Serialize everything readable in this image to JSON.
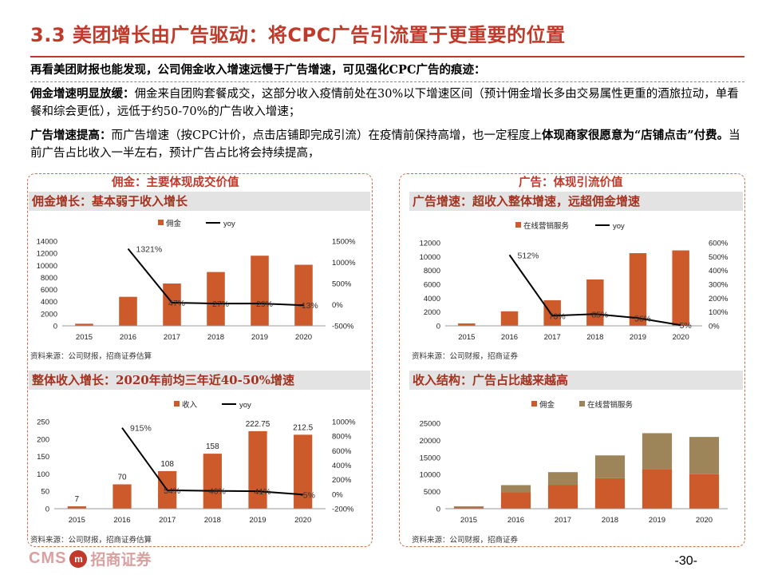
{
  "header": {
    "title": "3.3 美团增长由广告驱动：将CPC广告引流置于更重要的位置"
  },
  "paragraphs": {
    "p1": "再看美团财报也能发现，公司佣金收入增速远慢于广告增速，可见强化CPC广告的痕迹：",
    "p2_lead": "佣金增速明显放缓：",
    "p2_body": "佣金来自团购套餐成交，这部分收入疫情前处在30%以下增速区间（预计佣金增长多由交易属性更重的酒旅拉动，单看餐和综会更低），远低于约50-70%的广告收入增速；",
    "p3_lead": "广告增速提高：",
    "p3_body": "而广告增速（按CPC计价，点击店铺即完成引流）在疫情前保持高增，也一定程度上",
    "p3_bold": "体现商家很愿意为“店铺点击”付费。",
    "p3_tail": "当前广告占比收入一半左右，预计广告占比将会持续提高，"
  },
  "left_box": {
    "header": "佣金：主要体现成交价值"
  },
  "right_box": {
    "header": "广告：体现引流价值"
  },
  "footer": {
    "cms": "CMS",
    "logo_glyph": "m",
    "logo_cn": "招商证券",
    "page": "-30-"
  },
  "chart_data": [
    {
      "id": "commission",
      "type": "bar",
      "title": "佣金增长：基本弱于收入增长",
      "categories": [
        "2015",
        "2016",
        "2017",
        "2018",
        "2019",
        "2020"
      ],
      "series": [
        {
          "name": "佣金",
          "kind": "bar",
          "axis": "left",
          "values": [
            350,
            4800,
            7000,
            8900,
            11600,
            10100
          ]
        },
        {
          "name": "yoy",
          "kind": "line",
          "axis": "right",
          "values": [
            null,
            1321,
            47,
            27,
            29,
            -13
          ]
        }
      ],
      "point_labels": [
        "",
        "1321%",
        "47%",
        "27%",
        "29%",
        "-13%"
      ],
      "legend": [
        "佣金",
        "yoy"
      ],
      "left_axis": {
        "min": 0,
        "max": 14000,
        "ticks": [
          "0",
          "2000",
          "4000",
          "6000",
          "8000",
          "10000",
          "12000",
          "14000"
        ]
      },
      "right_axis": {
        "min": -500,
        "max": 1500,
        "ticks": [
          "-500%",
          "0%",
          "500%",
          "1000%",
          "1500%"
        ]
      },
      "source": "资料来源：公司财报，招商证券估算",
      "colors": {
        "bar": "#cc5a2b",
        "line": "#000000"
      }
    },
    {
      "id": "ads",
      "type": "bar",
      "title": "广告增速：超收入整体增速，远超佣金增速",
      "categories": [
        "2015",
        "2016",
        "2017",
        "2018",
        "2019",
        "2020"
      ],
      "series": [
        {
          "name": "在线营销服务",
          "kind": "bar",
          "axis": "left",
          "values": [
            350,
            2100,
            3700,
            6700,
            10500,
            10900
          ]
        },
        {
          "name": "yoy",
          "kind": "line",
          "axis": "right",
          "values": [
            null,
            512,
            73,
            85,
            56,
            5
          ]
        }
      ],
      "point_labels": [
        "",
        "512%",
        "73%",
        "85%",
        "56%",
        "5%"
      ],
      "legend": [
        "在线营销服务",
        "yoy"
      ],
      "left_axis": {
        "min": 0,
        "max": 12000,
        "ticks": [
          "0",
          "2000",
          "4000",
          "6000",
          "8000",
          "10000",
          "12000"
        ]
      },
      "right_axis": {
        "min": 0,
        "max": 600,
        "ticks": [
          "0%",
          "100%",
          "200%",
          "300%",
          "400%",
          "500%",
          "600%"
        ]
      },
      "source": "资料来源：公司财报，招商证券",
      "colors": {
        "bar": "#cc5a2b",
        "line": "#000000"
      }
    },
    {
      "id": "revenue",
      "type": "bar",
      "title": "整体收入增长：2020年前均三年近40-50%增速",
      "categories": [
        "2015",
        "2016",
        "2017",
        "2018",
        "2019",
        "2020"
      ],
      "series": [
        {
          "name": "收入",
          "kind": "bar",
          "axis": "left",
          "values": [
            7,
            70,
            108,
            158,
            222.75,
            212.5
          ]
        },
        {
          "name": "yoy",
          "kind": "line",
          "axis": "right",
          "values": [
            null,
            915,
            54,
            46,
            41,
            -5
          ]
        }
      ],
      "bar_labels": [
        "7",
        "70",
        "108",
        "158",
        "222.75",
        "212.5"
      ],
      "point_labels": [
        "",
        "915%",
        "54%",
        "46%",
        "41%",
        "-5%"
      ],
      "legend": [
        "收入",
        "yoy"
      ],
      "left_axis": {
        "min": 0,
        "max": 250,
        "ticks": [
          "0",
          "50",
          "100",
          "150",
          "200",
          "250"
        ]
      },
      "right_axis": {
        "min": -200,
        "max": 1000,
        "ticks": [
          "-200%",
          "0%",
          "200%",
          "400%",
          "600%",
          "800%",
          "1000%"
        ]
      },
      "source": "资料来源：公司财报，招商证券估算",
      "colors": {
        "bar": "#cc5a2b",
        "line": "#000000"
      }
    },
    {
      "id": "structure",
      "type": "bar",
      "stacked": true,
      "title": "收入结构：广告占比越来越高",
      "categories": [
        "2015",
        "2016",
        "2017",
        "2018",
        "2019",
        "2020"
      ],
      "series": [
        {
          "name": "佣金",
          "kind": "bar",
          "values": [
            350,
            4800,
            7000,
            8900,
            11600,
            10100
          ]
        },
        {
          "name": "在线营销服务",
          "kind": "bar",
          "values": [
            350,
            2100,
            3700,
            6700,
            10500,
            10900
          ]
        }
      ],
      "legend": [
        "佣金",
        "在线营销服务"
      ],
      "left_axis": {
        "min": 0,
        "max": 25000,
        "ticks": [
          "0",
          "5000",
          "10000",
          "15000",
          "20000",
          "25000"
        ]
      },
      "source": "资料来源：公司财报，招商证券",
      "colors": {
        "bar": "#cc5a2b",
        "bar2": "#9e8559"
      }
    }
  ]
}
